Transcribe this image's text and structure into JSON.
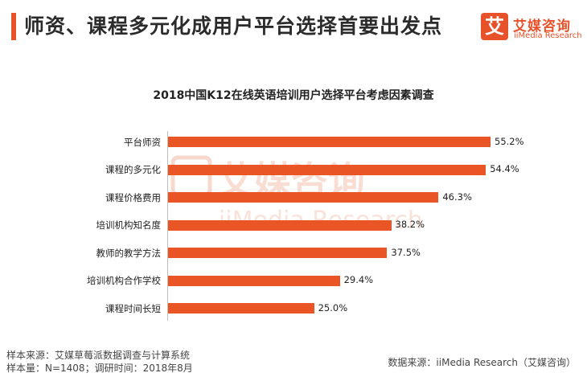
{
  "page_title": "师资、课程多元化成用户平台选择首要出发点",
  "logo": {
    "mark": "艾",
    "name_cn": "艾媒咨询",
    "name_en": "iiMedia Research"
  },
  "watermark": {
    "text_cn": "艾媒咨询",
    "text_en": "iiMedia Research"
  },
  "chart_data": {
    "type": "bar",
    "orientation": "horizontal",
    "title": "2018中国K12在线英语培训用户选择平台考虑因素调查",
    "categories": [
      "平台师资",
      "课程的多元化",
      "课程价格费用",
      "培训机构知名度",
      "教师的教学方法",
      "培训机构合作学校",
      "课程时间长短"
    ],
    "values": [
      55.2,
      54.4,
      46.3,
      38.2,
      37.5,
      29.4,
      25.0
    ],
    "value_labels": [
      "55.2%",
      "54.4%",
      "46.3%",
      "38.2%",
      "37.5%",
      "29.4%",
      "25.0%"
    ],
    "unit": "%",
    "xlim": [
      0,
      55.2
    ],
    "color": "#ea5526"
  },
  "footer": {
    "source_line": "样本来源：艾媒草莓派数据调查与计算系统",
    "sample_line": "样本量：N=1408；调研时间：2018年8月",
    "data_source": "数据来源：iiMedia Research（艾媒咨询）"
  }
}
